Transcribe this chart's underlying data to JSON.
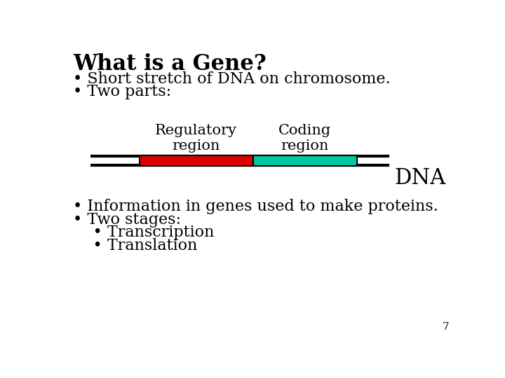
{
  "title": "What is a Gene?",
  "title_fontsize": 22,
  "title_fontweight": "bold",
  "bullet1": "• Short stretch of DNA on chromosome.",
  "bullet2": "• Two parts:",
  "bullet3": "• Information in genes used to make proteins.",
  "bullet4": "• Two stages:",
  "bullet5": "    • Transcription",
  "bullet6": "    • Translation",
  "text_fontsize": 16,
  "reg_label": "Regulatory\nregion",
  "cod_label": "Coding\nregion",
  "dna_label": "DNA",
  "label_fontsize": 15,
  "dna_label_fontsize": 22,
  "reg_color": "#dd0000",
  "cod_color": "#00c8a0",
  "box_outline": "#000000",
  "line_color": "#000000",
  "page_number": "7"
}
